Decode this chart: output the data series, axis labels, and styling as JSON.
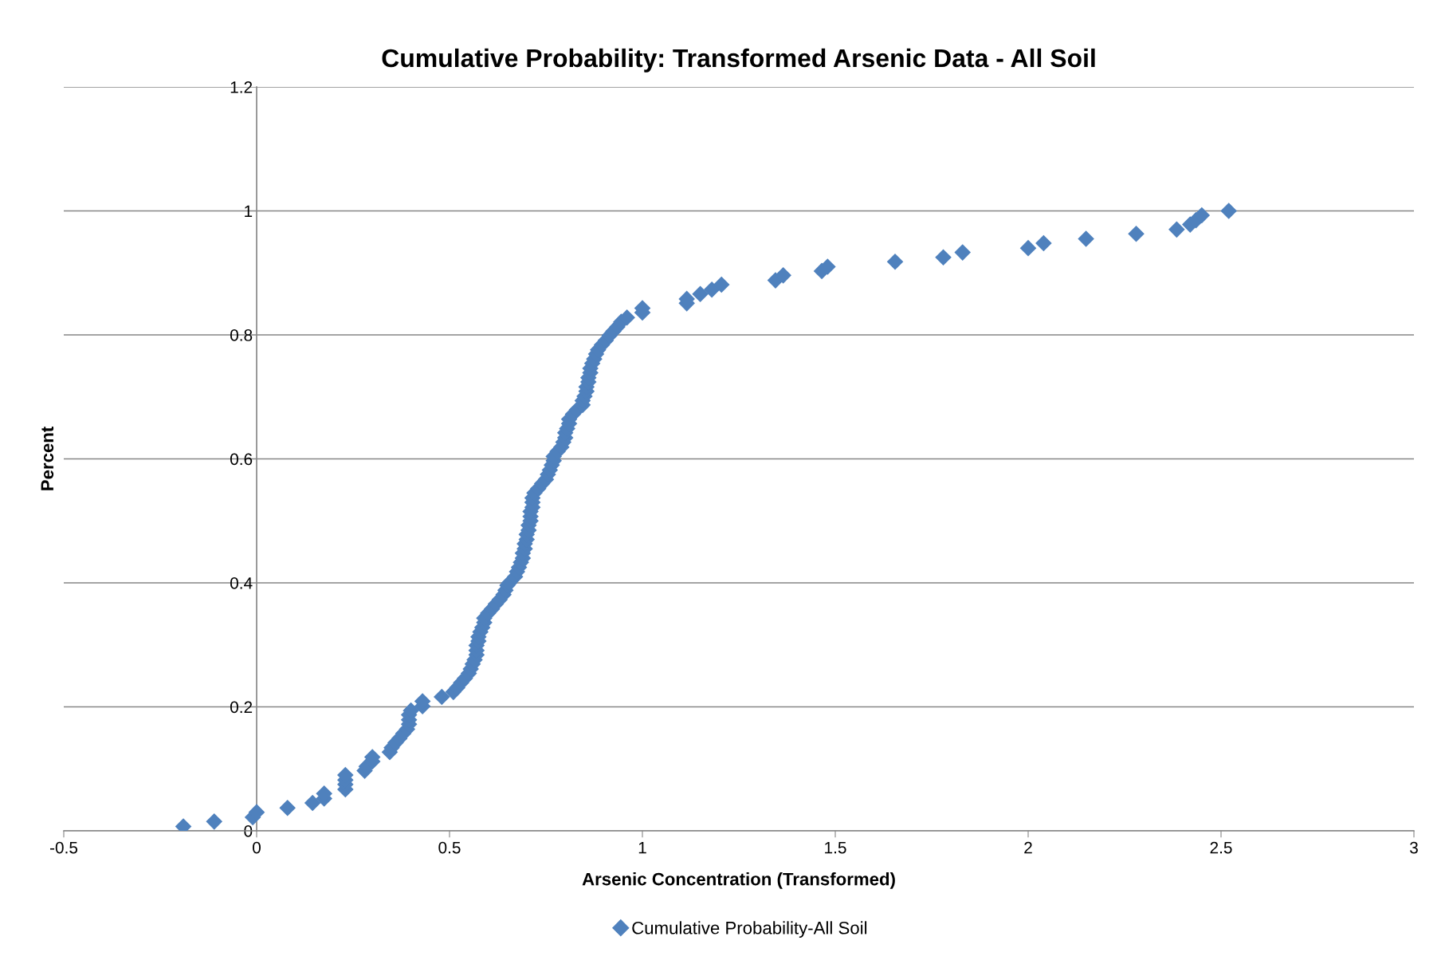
{
  "chart_data": {
    "type": "scatter",
    "title": "Cumulative Probability: Transformed Arsenic Data - All Soil",
    "xlabel": "Arsenic Concentration (Transformed)",
    "ylabel": "Percent",
    "xlim": [
      -0.5,
      3
    ],
    "xticks": [
      -0.5,
      0,
      0.5,
      1,
      1.5,
      2,
      2.5,
      3
    ],
    "ylim": [
      0,
      1.2
    ],
    "yticks": [
      0,
      0.2,
      0.4,
      0.6,
      0.8,
      1,
      1.2
    ],
    "grid": "y",
    "legend": "bottom",
    "marker": "diamond",
    "series": [
      {
        "name": "Cumulative Probability-All Soil",
        "color": "#4f81bd",
        "x": [
          -0.19,
          -0.11,
          -0.01,
          0,
          0.08,
          0.145,
          0.175,
          0.175,
          0.23,
          0.23,
          0.23,
          0.23,
          0.28,
          0.285,
          0.3,
          0.3,
          0.345,
          0.35,
          0.36,
          0.37,
          0.38,
          0.39,
          0.395,
          0.395,
          0.395,
          0.4,
          0.43,
          0.43,
          0.48,
          0.51,
          0.52,
          0.53,
          0.54,
          0.55,
          0.555,
          0.56,
          0.565,
          0.57,
          0.57,
          0.57,
          0.575,
          0.575,
          0.58,
          0.585,
          0.59,
          0.59,
          0.6,
          0.61,
          0.62,
          0.63,
          0.64,
          0.645,
          0.65,
          0.655,
          0.67,
          0.675,
          0.68,
          0.685,
          0.69,
          0.69,
          0.695,
          0.695,
          0.7,
          0.7,
          0.705,
          0.705,
          0.71,
          0.71,
          0.71,
          0.715,
          0.715,
          0.715,
          0.72,
          0.73,
          0.74,
          0.75,
          0.755,
          0.76,
          0.765,
          0.77,
          0.77,
          0.78,
          0.79,
          0.795,
          0.8,
          0.8,
          0.805,
          0.81,
          0.81,
          0.82,
          0.83,
          0.845,
          0.845,
          0.85,
          0.855,
          0.855,
          0.86,
          0.86,
          0.865,
          0.865,
          0.87,
          0.875,
          0.88,
          0.885,
          0.895,
          0.905,
          0.915,
          0.925,
          0.935,
          0.945,
          0.96,
          1.0,
          1.0,
          1.115,
          1.115,
          1.15,
          1.18,
          1.205,
          1.345,
          1.365,
          1.465,
          1.48,
          1.655,
          1.78,
          1.83,
          2.0,
          2.04,
          2.15,
          2.28,
          2.385,
          2.42,
          2.435,
          2.45,
          2.52
        ],
        "values": [
          0.007,
          0.015,
          0.022,
          0.03,
          0.037,
          0.045,
          0.052,
          0.06,
          0.067,
          0.075,
          0.082,
          0.09,
          0.097,
          0.104,
          0.112,
          0.119,
          0.127,
          0.134,
          0.142,
          0.149,
          0.157,
          0.164,
          0.172,
          0.179,
          0.187,
          0.194,
          0.201,
          0.209,
          0.216,
          0.224,
          0.231,
          0.239,
          0.246,
          0.254,
          0.261,
          0.269,
          0.276,
          0.284,
          0.291,
          0.299,
          0.306,
          0.313,
          0.321,
          0.328,
          0.336,
          0.343,
          0.351,
          0.358,
          0.366,
          0.373,
          0.381,
          0.388,
          0.396,
          0.4,
          0.41,
          0.418,
          0.425,
          0.433,
          0.44,
          0.448,
          0.455,
          0.463,
          0.47,
          0.478,
          0.485,
          0.493,
          0.5,
          0.507,
          0.515,
          0.522,
          0.53,
          0.537,
          0.545,
          0.552,
          0.56,
          0.567,
          0.575,
          0.582,
          0.59,
          0.597,
          0.604,
          0.612,
          0.619,
          0.627,
          0.634,
          0.642,
          0.649,
          0.657,
          0.664,
          0.672,
          0.679,
          0.687,
          0.694,
          0.701,
          0.709,
          0.716,
          0.724,
          0.731,
          0.739,
          0.746,
          0.754,
          0.761,
          0.769,
          0.776,
          0.784,
          0.791,
          0.799,
          0.806,
          0.813,
          0.821,
          0.828,
          0.836,
          0.843,
          0.851,
          0.858,
          0.866,
          0.873,
          0.881,
          0.888,
          0.896,
          0.903,
          0.91,
          0.918,
          0.925,
          0.933,
          0.94,
          0.948,
          0.955,
          0.963,
          0.97,
          0.978,
          0.985,
          0.993,
          1.0
        ]
      }
    ]
  }
}
